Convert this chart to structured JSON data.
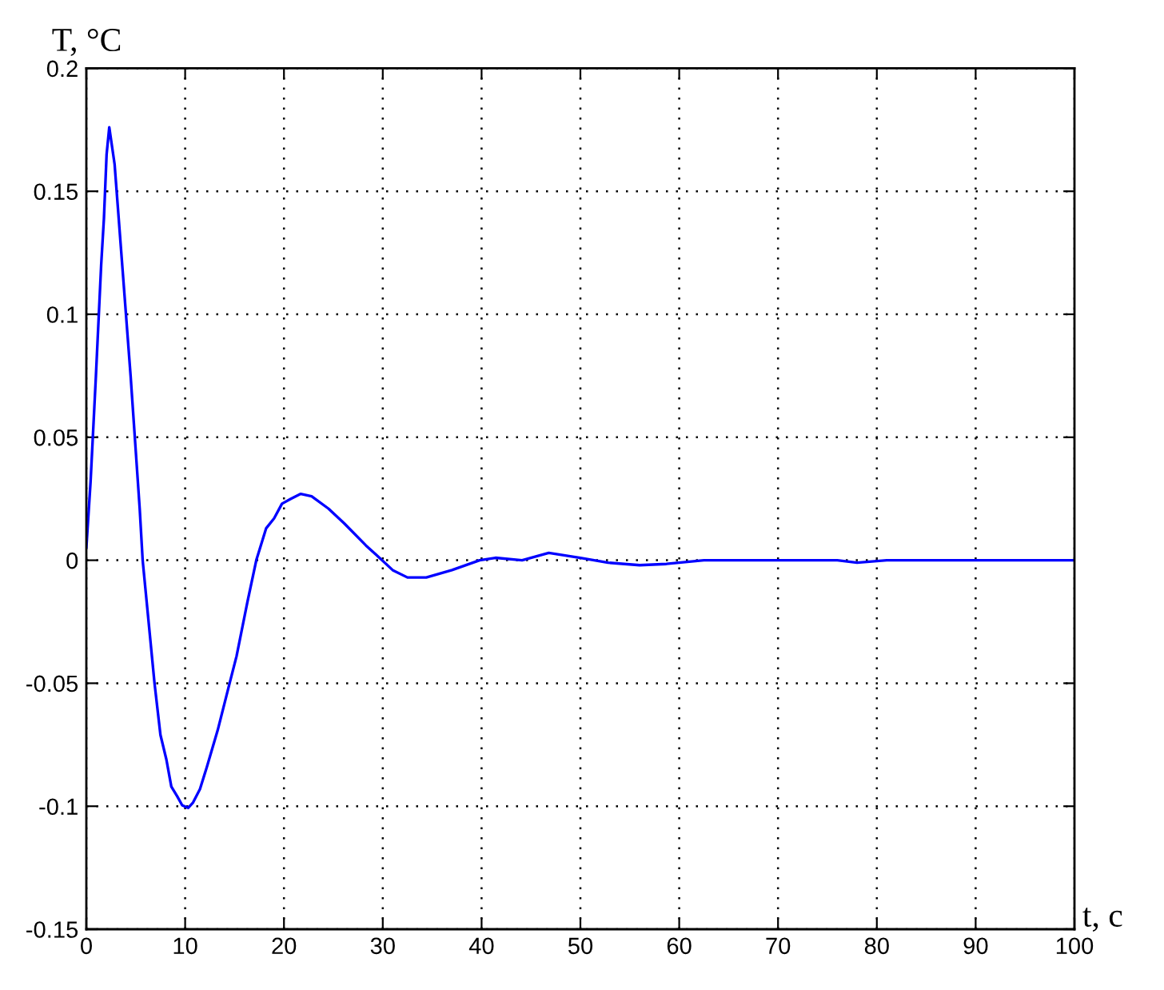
{
  "chart_data": {
    "type": "line",
    "xlabel": "t, c",
    "ylabel": "T, °C",
    "x": [
      0,
      0.43,
      0.97,
      1.5,
      1.78,
      2.05,
      2.32,
      2.86,
      3.67,
      4.48,
      5.4,
      5.7,
      6.9,
      7.5,
      8.1,
      8.6,
      9.2,
      9.7,
      10.3,
      10.8,
      11.5,
      12.2,
      13.3,
      14.5,
      15.2,
      16.3,
      17.2,
      18.2,
      19,
      19.8,
      20.7,
      21.7,
      22.8,
      24.5,
      26.1,
      28.3,
      29.4,
      31,
      32.5,
      34.4,
      37,
      39.8,
      41.4,
      44.1,
      46.8,
      50,
      52.8,
      56,
      58.7,
      62.5,
      76,
      78,
      81,
      100
    ],
    "series": [
      {
        "color": "#0000ff",
        "values": [
          0.005,
          0.032,
          0.075,
          0.12,
          0.139,
          0.165,
          0.176,
          0.161,
          0.118,
          0.075,
          0.021,
          0,
          -0.05,
          -0.071,
          -0.081,
          -0.092,
          -0.096,
          -0.0996,
          -0.1007,
          -0.0985,
          -0.093,
          -0.084,
          -0.069,
          -0.05,
          -0.039,
          -0.017,
          0,
          0.013,
          0.017,
          0.023,
          0.025,
          0.027,
          0.026,
          0.021,
          0.015,
          0.006,
          0.002,
          -0.004,
          -0.007,
          -0.007,
          -0.004,
          0,
          0.001,
          0,
          0.003,
          0.001,
          -0.001,
          -0.002,
          -0.0015,
          0,
          0,
          -0.001,
          0,
          0
        ]
      }
    ],
    "xlim": [
      0,
      100
    ],
    "ylim": [
      -0.15,
      0.2
    ],
    "xticks": [
      0,
      10,
      20,
      30,
      40,
      50,
      60,
      70,
      80,
      90,
      100
    ],
    "yticks": [
      -0.15,
      -0.1,
      -0.05,
      0,
      0.05,
      0.1,
      0.15,
      0.2
    ],
    "grid": true,
    "line_style": "solid"
  }
}
